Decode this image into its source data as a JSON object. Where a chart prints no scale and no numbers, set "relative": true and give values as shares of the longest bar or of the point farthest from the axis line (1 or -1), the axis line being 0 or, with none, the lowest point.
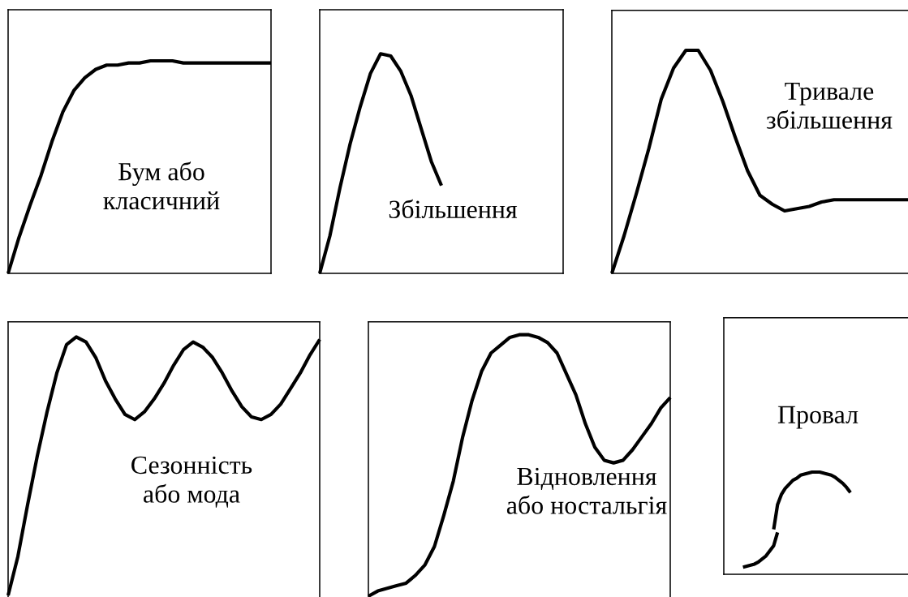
{
  "chart_data": [
    {
      "type": "line",
      "relative": true,
      "categories": [
        null,
        null,
        null,
        null,
        null,
        null,
        null,
        null,
        null,
        null,
        null,
        null,
        null,
        null,
        null,
        null,
        null,
        null,
        null,
        null,
        null,
        null,
        null,
        null,
        null
      ],
      "series": [
        {
          "color": "#000000",
          "values": [
            0,
            0.17,
            0.32,
            0.46,
            0.62,
            0.76,
            0.86,
            0.92,
            0.96,
            0.98,
            0.98,
            0.99,
            0.99,
            1.0,
            1.0,
            1.0,
            0.99,
            0.99,
            0.99,
            0.99,
            0.99,
            0.99,
            0.99,
            0.99,
            0.99
          ]
        }
      ],
      "annotations": [
        "Бум або\nкласичний"
      ]
    },
    {
      "type": "line",
      "relative": true,
      "categories": [
        null,
        null,
        null,
        null,
        null,
        null,
        null,
        null,
        null,
        null,
        null,
        null,
        null,
        null,
        null,
        null,
        null,
        null,
        null,
        null,
        null,
        null,
        null,
        null,
        null
      ],
      "series": [
        {
          "color": "#000000",
          "values": [
            0,
            0.17,
            0.39,
            0.59,
            0.76,
            0.91,
            1.0,
            0.99,
            0.92,
            0.81,
            0.66,
            0.51,
            0.4,
            null,
            null,
            null,
            null,
            null,
            null,
            null,
            null,
            null,
            null,
            null,
            null
          ]
        }
      ],
      "annotations": [
        "Збільшення"
      ]
    },
    {
      "type": "line",
      "relative": true,
      "categories": [
        null,
        null,
        null,
        null,
        null,
        null,
        null,
        null,
        null,
        null,
        null,
        null,
        null,
        null,
        null,
        null,
        null,
        null,
        null,
        null,
        null,
        null,
        null,
        null,
        null
      ],
      "series": [
        {
          "color": "#000000",
          "values": [
            0,
            0.17,
            0.36,
            0.56,
            0.78,
            0.92,
            1.0,
            1.0,
            0.91,
            0.77,
            0.61,
            0.46,
            0.35,
            0.31,
            0.28,
            0.29,
            0.3,
            0.32,
            0.33,
            0.33,
            0.33,
            0.33,
            0.33,
            0.33,
            0.33
          ]
        }
      ],
      "annotations": [
        "Тривале\nзбільшення"
      ]
    },
    {
      "type": "line",
      "relative": true,
      "categories": [
        null,
        null,
        null,
        null,
        null,
        null,
        null,
        null,
        null,
        null,
        null,
        null,
        null,
        null,
        null,
        null,
        null,
        null,
        null,
        null,
        null,
        null,
        null,
        null,
        null,
        null,
        null,
        null,
        null,
        null,
        null,
        null,
        null
      ],
      "series": [
        {
          "color": "#000000",
          "values": [
            0,
            0.15,
            0.35,
            0.54,
            0.71,
            0.86,
            0.97,
            1.0,
            0.98,
            0.92,
            0.83,
            0.76,
            0.7,
            0.68,
            0.71,
            0.76,
            0.82,
            0.89,
            0.95,
            0.98,
            0.96,
            0.92,
            0.86,
            0.79,
            0.73,
            0.69,
            0.68,
            0.7,
            0.74,
            0.8,
            0.86,
            0.93,
            0.99
          ]
        }
      ],
      "annotations": [
        "Сезонність\nабо мода"
      ]
    },
    {
      "type": "line",
      "relative": true,
      "categories": [
        null,
        null,
        null,
        null,
        null,
        null,
        null,
        null,
        null,
        null,
        null,
        null,
        null,
        null,
        null,
        null,
        null,
        null,
        null,
        null,
        null,
        null,
        null,
        null,
        null,
        null,
        null,
        null,
        null,
        null,
        null,
        null,
        null
      ],
      "series": [
        {
          "color": "#000000",
          "values": [
            0,
            0.02,
            0.03,
            0.04,
            0.05,
            0.08,
            0.12,
            0.19,
            0.31,
            0.44,
            0.61,
            0.75,
            0.86,
            0.93,
            0.96,
            0.99,
            1.0,
            1.0,
            0.99,
            0.97,
            0.93,
            0.85,
            0.77,
            0.66,
            0.57,
            0.52,
            0.51,
            0.52,
            0.56,
            0.61,
            0.66,
            0.72,
            0.76
          ]
        }
      ],
      "annotations": [
        "Відновлення\nабо ностальгія"
      ]
    },
    {
      "type": "line",
      "relative": true,
      "categories": [
        null,
        null,
        null,
        null,
        null,
        null,
        null,
        null,
        null,
        null,
        null,
        null,
        null,
        null,
        null,
        null,
        null,
        null,
        null,
        null,
        null,
        null,
        null,
        null,
        null,
        null,
        null,
        null,
        null,
        null,
        null,
        null,
        null,
        null,
        null,
        null,
        null,
        null,
        null,
        null,
        null,
        null,
        null,
        null,
        null,
        null,
        null,
        null,
        null
      ],
      "series": [
        {
          "color": "#000000",
          "values": [
            null,
            null,
            null,
            null,
            null,
            0.07,
            0.08,
            0.09,
            0.1,
            0.12,
            0.15,
            0.18,
            0.23,
            0.28,
            0.41,
            null,
            null,
            null,
            null,
            null,
            null,
            null,
            null,
            null,
            null,
            null,
            null,
            null,
            null,
            null,
            null,
            null,
            null,
            null,
            null,
            null,
            null,
            null,
            null,
            null,
            null,
            null,
            null,
            null,
            null,
            null,
            null,
            null,
            null
          ]
        },
        {
          "color": "#000000",
          "values": [
            null,
            null,
            null,
            null,
            null,
            null,
            null,
            null,
            null,
            null,
            null,
            null,
            null,
            0.44,
            0.68,
            0.78,
            0.84,
            0.88,
            0.92,
            0.94,
            0.97,
            0.98,
            0.99,
            1.0,
            1.0,
            1.0,
            0.99,
            0.98,
            0.97,
            0.95,
            0.92,
            0.89,
            0.85,
            0.8,
            null,
            null,
            null,
            null,
            null,
            null,
            null,
            null,
            null,
            null,
            null,
            null,
            null,
            null,
            null
          ]
        }
      ],
      "annotations": [
        "Провал"
      ]
    }
  ]
}
